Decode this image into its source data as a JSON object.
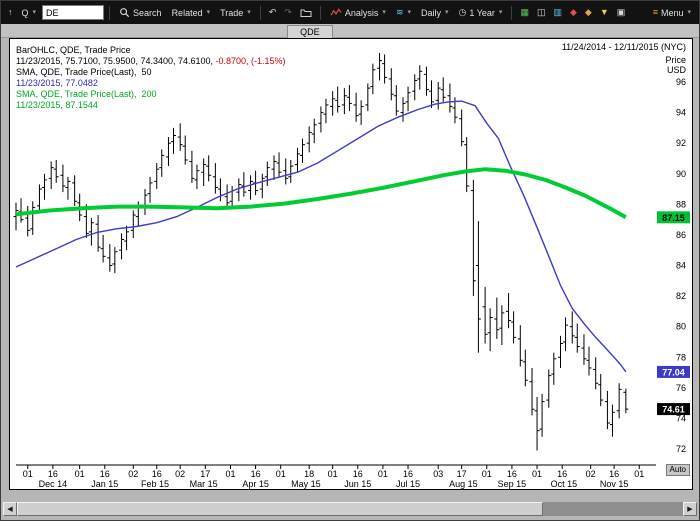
{
  "icons": {
    "caret": "▾",
    "up_arrow": "↑",
    "undo": "↶",
    "redo": "↷",
    "waves": "≋",
    "clock": "◷",
    "grid": "▦",
    "candle": "◫",
    "bars": "▥",
    "diamond": "◆",
    "funnel": "▼",
    "layers": "▣",
    "burger": "≡",
    "tri_left": "◀",
    "tri_right": "▶"
  },
  "titlebar": {
    "symbol_value": "DE",
    "quote_label": "Q",
    "search_label": "Search",
    "related_label": "Related",
    "trade_label": "Trade",
    "analysis_label": "Analysis",
    "daily_label": "Daily",
    "range_label": "1 Year",
    "menu_label": "Menu"
  },
  "tabstrip": {
    "active_tab": "QDE"
  },
  "chart": {
    "date_range": "11/24/2014 - 12/11/2015 (NYC)",
    "axis_title_line1": "Price",
    "axis_title_line2": "USD",
    "auto_label": "Auto",
    "legend": [
      {
        "parts": [
          {
            "text": "BarOHLC, QDE, Trade Price",
            "color": "#000000"
          }
        ]
      },
      {
        "parts": [
          {
            "text": "11/23/2015, 75.7100, 75.9500, 74.3400, 74.6100, ",
            "color": "#000000"
          },
          {
            "text": "-0.8700, (-1.15%)",
            "color": "#cc0000"
          }
        ]
      },
      {
        "parts": [
          {
            "text": "SMA, QDE, Trade Price(Last),  50",
            "color": "#000000"
          }
        ]
      },
      {
        "parts": [
          {
            "text": "11/23/2015, 77.0482",
            "color": "#2a2ab8"
          }
        ]
      },
      {
        "parts": [
          {
            "text": "SMA, QDE, Trade Price(Last),  200",
            "color": "#00a821"
          }
        ]
      },
      {
        "parts": [
          {
            "text": "11/23/2015, 87.1544",
            "color": "#00a821"
          }
        ]
      }
    ],
    "badges": [
      {
        "value": "87.15",
        "price": 87.15,
        "bg": "#00c232",
        "fg": "#000000"
      },
      {
        "value": "77.04",
        "price": 77.04,
        "bg": "#3b3bc8",
        "fg": "#ffffff"
      },
      {
        "value": "74.61",
        "price": 74.61,
        "bg": "#000000",
        "fg": "#ffffff"
      }
    ]
  },
  "chart_data": {
    "type": "ohlc",
    "title": "QDE Trade Price with 50-day and 200-day SMA",
    "x_unit": "days since 2014-11-24",
    "x_domain": [
      0,
      382
    ],
    "y_domain": [
      71.0,
      98.8
    ],
    "ylabel": "Price USD",
    "grid": false,
    "y_ticks": [
      72,
      74,
      76,
      78,
      80,
      82,
      84,
      86,
      88,
      90,
      92,
      94,
      96
    ],
    "x_ticks": [
      {
        "d": 7,
        "label": "01"
      },
      {
        "d": 22,
        "label": "16"
      },
      {
        "d": 38,
        "label": "01"
      },
      {
        "d": 53,
        "label": "16"
      },
      {
        "d": 70,
        "label": "02"
      },
      {
        "d": 84,
        "label": "16"
      },
      {
        "d": 98,
        "label": "02"
      },
      {
        "d": 113,
        "label": "17"
      },
      {
        "d": 128,
        "label": "01"
      },
      {
        "d": 143,
        "label": "16"
      },
      {
        "d": 158,
        "label": "01"
      },
      {
        "d": 175,
        "label": "18"
      },
      {
        "d": 189,
        "label": "01"
      },
      {
        "d": 204,
        "label": "16"
      },
      {
        "d": 219,
        "label": "01"
      },
      {
        "d": 234,
        "label": "16"
      },
      {
        "d": 252,
        "label": "03"
      },
      {
        "d": 266,
        "label": "17"
      },
      {
        "d": 281,
        "label": "01"
      },
      {
        "d": 296,
        "label": "16"
      },
      {
        "d": 311,
        "label": "01"
      },
      {
        "d": 326,
        "label": "16"
      },
      {
        "d": 343,
        "label": "02"
      },
      {
        "d": 357,
        "label": "16"
      },
      {
        "d": 372,
        "label": "01"
      }
    ],
    "x_month_labels": [
      {
        "d": 22,
        "label": "Dec 14"
      },
      {
        "d": 53,
        "label": "Jan 15"
      },
      {
        "d": 83,
        "label": "Feb 15"
      },
      {
        "d": 112,
        "label": "Mar 15"
      },
      {
        "d": 143,
        "label": "Apr 15"
      },
      {
        "d": 173,
        "label": "May 15"
      },
      {
        "d": 204,
        "label": "Jun 15"
      },
      {
        "d": 234,
        "label": "Jul 15"
      },
      {
        "d": 267,
        "label": "Aug 15"
      },
      {
        "d": 296,
        "label": "Sep 15"
      },
      {
        "d": 327,
        "label": "Oct 15"
      },
      {
        "d": 357,
        "label": "Nov 15"
      }
    ],
    "ohlc_fields": [
      "day",
      "open",
      "high",
      "low",
      "close"
    ],
    "granularity": "approx 2 bars per week, estimated from pixels",
    "ohlc": [
      [
        0,
        87.2,
        88.1,
        86.3,
        87.6
      ],
      [
        3,
        87.5,
        88.4,
        86.8,
        87.0
      ],
      [
        7,
        87.1,
        87.9,
        85.9,
        86.3
      ],
      [
        10,
        86.4,
        88.2,
        86.0,
        87.8
      ],
      [
        14,
        87.9,
        89.3,
        87.4,
        89.0
      ],
      [
        17,
        89.1,
        90.0,
        88.3,
        89.6
      ],
      [
        21,
        89.7,
        90.8,
        89.0,
        90.4
      ],
      [
        24,
        90.3,
        90.9,
        89.4,
        89.8
      ],
      [
        28,
        89.9,
        90.6,
        88.8,
        89.2
      ],
      [
        31,
        89.1,
        89.8,
        88.3,
        89.5
      ],
      [
        35,
        89.4,
        89.9,
        87.9,
        88.2
      ],
      [
        38,
        88.1,
        88.7,
        86.9,
        87.3
      ],
      [
        42,
        87.2,
        88.0,
        85.8,
        86.1
      ],
      [
        45,
        86.2,
        87.1,
        85.3,
        86.8
      ],
      [
        49,
        86.7,
        87.3,
        84.9,
        85.2
      ],
      [
        52,
        85.1,
        86.0,
        84.2,
        84.6
      ],
      [
        56,
        84.5,
        85.4,
        83.6,
        84.0
      ],
      [
        59,
        84.1,
        85.2,
        83.5,
        84.9
      ],
      [
        63,
        85.0,
        86.1,
        84.4,
        85.7
      ],
      [
        66,
        85.6,
        86.6,
        85.0,
        86.2
      ],
      [
        70,
        86.3,
        87.6,
        85.8,
        87.3
      ],
      [
        73,
        87.2,
        88.2,
        86.6,
        87.8
      ],
      [
        77,
        87.9,
        89.0,
        87.3,
        88.6
      ],
      [
        80,
        88.7,
        89.8,
        88.1,
        89.4
      ],
      [
        84,
        89.5,
        90.7,
        89.0,
        90.3
      ],
      [
        87,
        90.4,
        91.6,
        89.8,
        91.2
      ],
      [
        91,
        91.1,
        92.4,
        90.5,
        92.0
      ],
      [
        94,
        92.1,
        93.0,
        91.3,
        92.5
      ],
      [
        98,
        92.4,
        93.3,
        91.5,
        91.9
      ],
      [
        101,
        91.8,
        92.5,
        90.6,
        90.9
      ],
      [
        105,
        90.8,
        91.5,
        89.4,
        89.7
      ],
      [
        108,
        89.6,
        90.6,
        89.0,
        90.2
      ],
      [
        112,
        90.1,
        91.0,
        89.2,
        90.6
      ],
      [
        115,
        90.5,
        91.2,
        89.5,
        89.9
      ],
      [
        119,
        89.8,
        90.7,
        88.7,
        89.1
      ],
      [
        122,
        89.0,
        89.7,
        88.2,
        88.6
      ],
      [
        126,
        88.5,
        89.3,
        87.7,
        88.1
      ],
      [
        129,
        88.2,
        89.2,
        87.8,
        88.9
      ],
      [
        133,
        88.8,
        89.7,
        88.2,
        89.3
      ],
      [
        136,
        89.2,
        90.1,
        88.5,
        88.8
      ],
      [
        140,
        88.9,
        89.9,
        88.3,
        89.5
      ],
      [
        143,
        89.4,
        90.2,
        88.6,
        88.9
      ],
      [
        147,
        89.0,
        90.0,
        88.4,
        89.7
      ],
      [
        150,
        89.8,
        90.8,
        89.2,
        90.4
      ],
      [
        154,
        90.3,
        91.2,
        89.6,
        90.8
      ],
      [
        157,
        90.7,
        91.4,
        89.8,
        90.1
      ],
      [
        161,
        90.2,
        91.0,
        89.3,
        89.7
      ],
      [
        164,
        89.8,
        90.9,
        89.4,
        90.5
      ],
      [
        168,
        90.6,
        91.7,
        90.1,
        91.3
      ],
      [
        171,
        91.2,
        92.3,
        90.7,
        91.9
      ],
      [
        175,
        92.0,
        93.1,
        91.4,
        92.7
      ],
      [
        178,
        92.6,
        93.6,
        92.0,
        93.2
      ],
      [
        182,
        93.3,
        94.4,
        92.7,
        94.0
      ],
      [
        185,
        93.9,
        94.9,
        93.3,
        94.5
      ],
      [
        189,
        94.4,
        95.4,
        93.8,
        94.9
      ],
      [
        192,
        94.8,
        95.7,
        94.0,
        94.4
      ],
      [
        196,
        94.5,
        95.6,
        93.9,
        95.1
      ],
      [
        199,
        95.0,
        95.8,
        94.1,
        94.6
      ],
      [
        203,
        94.5,
        95.3,
        93.4,
        93.8
      ],
      [
        206,
        93.9,
        94.8,
        93.2,
        94.4
      ],
      [
        210,
        94.5,
        95.9,
        94.1,
        95.6
      ],
      [
        213,
        95.7,
        97.2,
        95.2,
        96.8
      ],
      [
        217,
        96.9,
        97.9,
        96.1,
        97.4
      ],
      [
        220,
        97.2,
        97.8,
        95.9,
        96.3
      ],
      [
        224,
        96.2,
        96.9,
        94.8,
        95.2
      ],
      [
        227,
        95.1,
        95.8,
        93.8,
        94.1
      ],
      [
        231,
        94.0,
        95.0,
        93.4,
        94.6
      ],
      [
        234,
        94.7,
        95.7,
        94.1,
        95.3
      ],
      [
        238,
        95.4,
        96.5,
        94.8,
        96.1
      ],
      [
        241,
        96.2,
        97.1,
        95.5,
        96.7
      ],
      [
        245,
        96.5,
        97.0,
        95.1,
        95.5
      ],
      [
        248,
        95.4,
        96.1,
        94.3,
        94.7
      ],
      [
        252,
        94.8,
        96.0,
        94.2,
        95.6
      ],
      [
        255,
        95.5,
        96.3,
        94.7,
        95.0
      ],
      [
        259,
        95.1,
        95.9,
        94.0,
        94.4
      ],
      [
        262,
        94.3,
        95.0,
        93.3,
        93.7
      ],
      [
        266,
        93.6,
        94.2,
        91.8,
        92.1
      ],
      [
        269,
        91.9,
        92.4,
        88.8,
        89.2
      ],
      [
        273,
        88.9,
        89.6,
        82.0,
        83.0
      ],
      [
        276,
        84.0,
        86.9,
        78.3,
        80.5
      ],
      [
        280,
        81.3,
        82.6,
        78.9,
        79.5
      ],
      [
        283,
        79.6,
        81.2,
        78.4,
        80.6
      ],
      [
        287,
        80.5,
        81.9,
        79.2,
        79.8
      ],
      [
        290,
        79.9,
        81.4,
        78.8,
        80.9
      ],
      [
        294,
        81.0,
        82.2,
        79.9,
        80.4
      ],
      [
        297,
        80.3,
        81.0,
        78.9,
        79.3
      ],
      [
        301,
        79.2,
        80.1,
        77.4,
        77.8
      ],
      [
        304,
        77.7,
        78.5,
        76.1,
        76.5
      ],
      [
        308,
        76.4,
        77.3,
        74.2,
        74.6
      ],
      [
        311,
        74.5,
        75.4,
        71.9,
        73.2
      ],
      [
        314,
        73.3,
        75.6,
        72.8,
        75.1
      ],
      [
        318,
        75.2,
        77.2,
        74.7,
        76.8
      ],
      [
        321,
        76.9,
        78.3,
        76.2,
        77.9
      ],
      [
        325,
        78.0,
        79.4,
        77.3,
        78.9
      ],
      [
        328,
        79.0,
        80.6,
        78.4,
        80.1
      ],
      [
        332,
        80.0,
        81.0,
        78.9,
        79.4
      ],
      [
        335,
        79.3,
        80.2,
        78.3,
        78.7
      ],
      [
        339,
        78.6,
        79.5,
        77.5,
        77.9
      ],
      [
        342,
        77.8,
        78.7,
        76.8,
        77.3
      ],
      [
        346,
        77.2,
        78.0,
        75.9,
        76.3
      ],
      [
        349,
        76.2,
        76.9,
        74.8,
        75.2
      ],
      [
        353,
        75.1,
        75.8,
        73.3,
        73.7
      ],
      [
        356,
        73.6,
        74.9,
        72.8,
        74.4
      ],
      [
        360,
        74.5,
        76.3,
        74.0,
        75.9
      ],
      [
        364,
        75.71,
        75.95,
        74.34,
        74.61
      ]
    ],
    "series": [
      {
        "name": "SMA 50",
        "color": "#3c3cc8",
        "width": 1.4,
        "points": [
          [
            0,
            83.9
          ],
          [
            12,
            84.5
          ],
          [
            24,
            85.1
          ],
          [
            36,
            85.7
          ],
          [
            48,
            86.15
          ],
          [
            60,
            86.4
          ],
          [
            72,
            86.55
          ],
          [
            84,
            86.8
          ],
          [
            96,
            87.2
          ],
          [
            108,
            87.8
          ],
          [
            120,
            88.45
          ],
          [
            132,
            89.0
          ],
          [
            144,
            89.4
          ],
          [
            156,
            89.75
          ],
          [
            168,
            90.1
          ],
          [
            180,
            90.7
          ],
          [
            192,
            91.5
          ],
          [
            204,
            92.3
          ],
          [
            216,
            93.1
          ],
          [
            228,
            93.7
          ],
          [
            240,
            94.2
          ],
          [
            250,
            94.55
          ],
          [
            258,
            94.7
          ],
          [
            266,
            94.75
          ],
          [
            274,
            94.45
          ],
          [
            281,
            93.3
          ],
          [
            288,
            92.3
          ],
          [
            295,
            90.5
          ],
          [
            303,
            88.6
          ],
          [
            311,
            86.5
          ],
          [
            318,
            84.6
          ],
          [
            325,
            82.7
          ],
          [
            332,
            81.2
          ],
          [
            339,
            80.2
          ],
          [
            346,
            79.3
          ],
          [
            352,
            78.6
          ],
          [
            357,
            78.0
          ],
          [
            361,
            77.5
          ],
          [
            364,
            77.05
          ]
        ]
      },
      {
        "name": "SMA 200",
        "color": "#00cc33",
        "width": 4,
        "points": [
          [
            0,
            87.35
          ],
          [
            20,
            87.6
          ],
          [
            40,
            87.75
          ],
          [
            60,
            87.85
          ],
          [
            80,
            87.85
          ],
          [
            100,
            87.8
          ],
          [
            120,
            87.75
          ],
          [
            140,
            87.85
          ],
          [
            160,
            88.05
          ],
          [
            180,
            88.35
          ],
          [
            200,
            88.7
          ],
          [
            220,
            89.1
          ],
          [
            240,
            89.55
          ],
          [
            255,
            89.9
          ],
          [
            268,
            90.15
          ],
          [
            280,
            90.3
          ],
          [
            292,
            90.2
          ],
          [
            304,
            89.95
          ],
          [
            316,
            89.6
          ],
          [
            328,
            89.1
          ],
          [
            340,
            88.55
          ],
          [
            348,
            88.1
          ],
          [
            356,
            87.65
          ],
          [
            364,
            87.15
          ]
        ]
      }
    ],
    "last": {
      "date": "11/23/2015",
      "open": 75.71,
      "high": 75.95,
      "low": 74.34,
      "close": 74.61,
      "change": -0.87,
      "change_pct": -1.15,
      "sma50": 77.0482,
      "sma200": 87.1544
    }
  }
}
